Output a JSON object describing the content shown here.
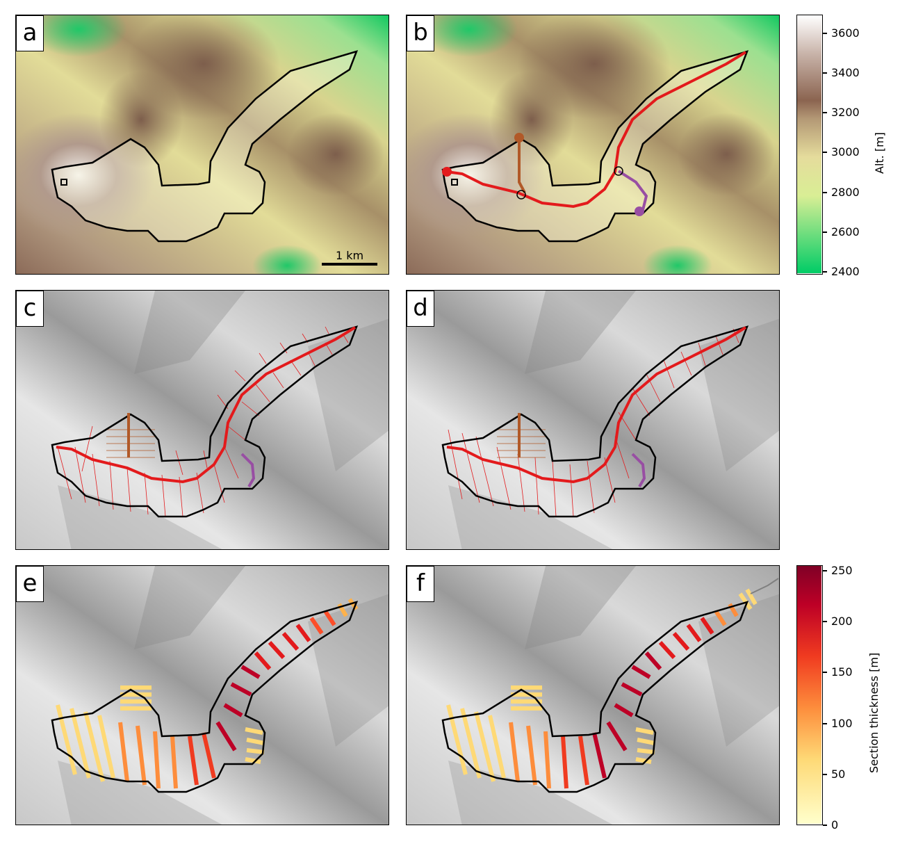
{
  "panels": [
    {
      "label": "a"
    },
    {
      "label": "b"
    },
    {
      "label": "c"
    },
    {
      "label": "d"
    },
    {
      "label": "e"
    },
    {
      "label": "f"
    }
  ],
  "scale_bar": {
    "text": "1 km"
  },
  "altitude_colorbar": {
    "label": "Alt. [m]",
    "ticks": [
      "3600",
      "3400",
      "3200",
      "3000",
      "2800",
      "2600",
      "2400"
    ],
    "range": [
      2380,
      3690
    ],
    "colors": [
      "#00cc66",
      "#f0f0a0",
      "#8b6450",
      "#ffffff"
    ]
  },
  "thickness_colorbar": {
    "label": "Section thickness [m]",
    "ticks": [
      "250",
      "200",
      "150",
      "100",
      "50",
      "0"
    ],
    "range": [
      0,
      255
    ],
    "colors": [
      "#ffffcc",
      "#feb24c",
      "#fc4e2a",
      "#bd0026",
      "#800026"
    ]
  },
  "line_colors": {
    "main_flowline": "#e31a1c",
    "tributary_1": "#b15928",
    "tributary_2": "#984ea3",
    "outline": "#000000",
    "extension": "#808080"
  }
}
